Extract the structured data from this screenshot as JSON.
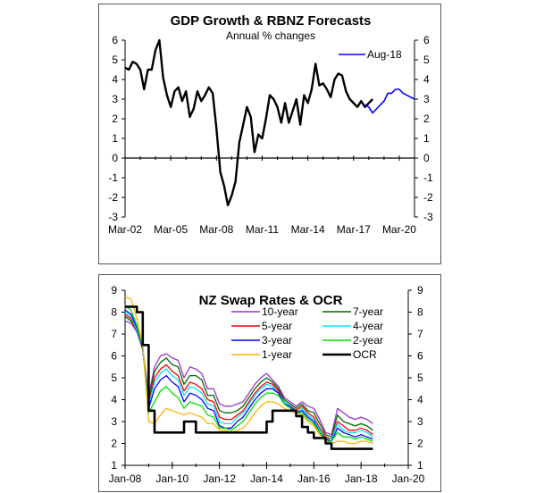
{
  "chart_data": [
    {
      "type": "line",
      "title": "GDP Growth & RBNZ Forecasts",
      "subtitle": "Annual % changes",
      "xlabel": "",
      "ylabel": "",
      "x_tick_labels": [
        "Mar-02",
        "Mar-05",
        "Mar-08",
        "Mar-11",
        "Mar-14",
        "Mar-17",
        "Mar-20"
      ],
      "x_range": [
        2002.0,
        2021.0
      ],
      "ylim": [
        -3,
        6
      ],
      "y_ticks": [
        -3,
        -2,
        -1,
        0,
        1,
        2,
        3,
        4,
        5,
        6
      ],
      "grid": false,
      "legend_position": "top-right",
      "series": [
        {
          "name": "GDP",
          "color": "#000000",
          "in_legend": false,
          "x": [
            2002.0,
            2002.25,
            2002.5,
            2002.75,
            2003.0,
            2003.25,
            2003.5,
            2003.75,
            2004.0,
            2004.25,
            2004.5,
            2004.75,
            2005.0,
            2005.25,
            2005.5,
            2005.75,
            2006.0,
            2006.25,
            2006.5,
            2006.75,
            2007.0,
            2007.25,
            2007.5,
            2007.75,
            2008.0,
            2008.25,
            2008.5,
            2008.75,
            2009.0,
            2009.25,
            2009.5,
            2009.75,
            2010.0,
            2010.25,
            2010.5,
            2010.75,
            2011.0,
            2011.25,
            2011.5,
            2011.75,
            2012.0,
            2012.25,
            2012.5,
            2012.75,
            2013.0,
            2013.25,
            2013.5,
            2013.75,
            2014.0,
            2014.25,
            2014.5,
            2014.75,
            2015.0,
            2015.25,
            2015.5,
            2015.75,
            2016.0,
            2016.25,
            2016.5,
            2016.75,
            2017.0,
            2017.25,
            2017.5,
            2017.75,
            2018.0,
            2018.25
          ],
          "values": [
            4.6,
            4.5,
            4.9,
            4.8,
            4.5,
            3.5,
            4.5,
            4.5,
            5.5,
            6.0,
            4.1,
            3.2,
            2.6,
            3.4,
            3.6,
            2.9,
            3.4,
            2.1,
            2.5,
            3.4,
            2.9,
            3.2,
            3.6,
            3.3,
            1.5,
            -0.7,
            -1.4,
            -2.4,
            -1.9,
            -1.2,
            0.8,
            1.7,
            2.6,
            2.1,
            0.3,
            1.2,
            1.0,
            2.0,
            3.2,
            3.0,
            2.6,
            1.8,
            2.8,
            1.8,
            2.4,
            3.0,
            1.7,
            3.2,
            2.8,
            3.5,
            4.8,
            3.7,
            3.8,
            3.5,
            3.1,
            4.0,
            4.3,
            4.2,
            3.4,
            3.0,
            2.8,
            2.6,
            2.9,
            2.6,
            2.8,
            3.0
          ],
          "note": "last two points overlap forecast start"
        },
        {
          "name": "Aug-18",
          "color": "#0000ff",
          "in_legend": true,
          "x": [
            2017.75,
            2018.0,
            2018.25,
            2018.5,
            2018.75,
            2019.0,
            2019.25,
            2019.5,
            2019.75,
            2020.0,
            2020.25,
            2020.5,
            2020.75,
            2021.0
          ],
          "values": [
            2.7,
            2.6,
            2.3,
            2.5,
            2.7,
            2.9,
            3.3,
            3.3,
            3.5,
            3.5,
            3.3,
            3.2,
            3.1,
            3.0
          ]
        }
      ]
    },
    {
      "type": "line",
      "title": "NZ Swap Rates & OCR",
      "xlabel": "",
      "ylabel": "",
      "x_tick_labels": [
        "Jan-08",
        "Jan-10",
        "Jan-12",
        "Jan-14",
        "Jan-16",
        "Jan-18",
        "Jan-20"
      ],
      "x_range": [
        2008.0,
        2020.0
      ],
      "ylim": [
        1,
        9
      ],
      "y_ticks": [
        1,
        2,
        3,
        4,
        5,
        6,
        7,
        8,
        9
      ],
      "grid": false,
      "legend_position": "top-right",
      "x": [
        2008.0,
        2008.25,
        2008.5,
        2008.75,
        2009.0,
        2009.25,
        2009.5,
        2009.75,
        2010.0,
        2010.25,
        2010.5,
        2010.75,
        2011.0,
        2011.25,
        2011.5,
        2011.75,
        2012.0,
        2012.25,
        2012.5,
        2012.75,
        2013.0,
        2013.25,
        2013.5,
        2013.75,
        2014.0,
        2014.25,
        2014.5,
        2014.75,
        2015.0,
        2015.25,
        2015.5,
        2015.75,
        2016.0,
        2016.25,
        2016.5,
        2016.75,
        2017.0,
        2017.25,
        2017.5,
        2017.75,
        2018.0,
        2018.25,
        2018.5
      ],
      "series": [
        {
          "name": "10-year",
          "color": "#9933cc",
          "values": [
            7.6,
            7.5,
            7.1,
            6.3,
            4.2,
            5.5,
            6.0,
            6.1,
            5.9,
            5.8,
            5.0,
            5.5,
            5.4,
            5.2,
            4.5,
            4.5,
            3.8,
            3.7,
            3.7,
            3.8,
            3.9,
            4.3,
            4.7,
            5.0,
            5.2,
            4.9,
            4.6,
            4.1,
            3.9,
            3.7,
            3.9,
            3.7,
            3.6,
            3.1,
            2.5,
            2.4,
            3.6,
            3.4,
            3.2,
            3.1,
            3.2,
            3.1,
            2.9
          ]
        },
        {
          "name": "7-year",
          "color": "#006600",
          "values": [
            7.8,
            7.6,
            7.2,
            6.3,
            4.0,
            5.3,
            5.7,
            5.9,
            5.6,
            5.5,
            4.7,
            5.1,
            5.1,
            4.9,
            4.2,
            4.2,
            3.5,
            3.4,
            3.4,
            3.5,
            3.7,
            4.1,
            4.5,
            4.8,
            5.0,
            4.8,
            4.5,
            4.0,
            3.8,
            3.6,
            3.8,
            3.5,
            3.4,
            2.9,
            2.4,
            2.3,
            3.3,
            3.0,
            2.9,
            2.8,
            2.9,
            2.8,
            2.6
          ]
        },
        {
          "name": "5-year",
          "color": "#ff0000",
          "values": [
            7.9,
            7.7,
            7.2,
            6.3,
            3.8,
            5.0,
            5.4,
            5.6,
            5.3,
            5.1,
            4.4,
            4.8,
            4.7,
            4.5,
            4.0,
            3.9,
            3.2,
            3.1,
            3.1,
            3.3,
            3.5,
            3.9,
            4.3,
            4.6,
            4.8,
            4.7,
            4.4,
            3.9,
            3.7,
            3.5,
            3.7,
            3.4,
            3.2,
            2.7,
            2.3,
            2.2,
            3.0,
            2.8,
            2.6,
            2.6,
            2.7,
            2.6,
            2.4
          ]
        },
        {
          "name": "4-year",
          "color": "#00e5ff",
          "values": [
            8.0,
            7.8,
            7.2,
            6.3,
            3.7,
            4.8,
            5.2,
            5.4,
            5.1,
            4.9,
            4.2,
            4.6,
            4.5,
            4.3,
            3.8,
            3.7,
            3.0,
            2.9,
            2.9,
            3.2,
            3.4,
            3.8,
            4.2,
            4.5,
            4.7,
            4.6,
            4.3,
            3.9,
            3.7,
            3.4,
            3.6,
            3.3,
            3.1,
            2.6,
            2.2,
            2.2,
            2.9,
            2.6,
            2.5,
            2.5,
            2.6,
            2.5,
            2.3
          ]
        },
        {
          "name": "3-year",
          "color": "#0000ff",
          "values": [
            8.1,
            7.9,
            7.3,
            6.3,
            3.6,
            4.5,
            4.9,
            5.1,
            4.8,
            4.6,
            3.9,
            4.3,
            4.2,
            4.0,
            3.6,
            3.5,
            2.8,
            2.7,
            2.7,
            3.0,
            3.2,
            3.6,
            4.0,
            4.3,
            4.5,
            4.5,
            4.3,
            3.8,
            3.7,
            3.4,
            3.5,
            3.2,
            3.0,
            2.5,
            2.2,
            2.1,
            2.7,
            2.5,
            2.4,
            2.3,
            2.4,
            2.3,
            2.2
          ]
        },
        {
          "name": "2-year",
          "color": "#00dd00",
          "values": [
            8.3,
            8.1,
            7.4,
            6.4,
            3.4,
            3.9,
            4.4,
            4.6,
            4.3,
            4.1,
            3.6,
            3.9,
            3.8,
            3.7,
            3.3,
            3.2,
            2.7,
            2.7,
            2.6,
            2.8,
            3.0,
            3.4,
            3.8,
            4.1,
            4.3,
            4.3,
            4.2,
            3.8,
            3.6,
            3.4,
            3.4,
            3.1,
            2.9,
            2.5,
            2.1,
            2.1,
            2.5,
            2.3,
            2.3,
            2.2,
            2.3,
            2.2,
            2.1
          ]
        },
        {
          "name": "1-year",
          "color": "#ffb300",
          "values": [
            8.7,
            8.6,
            7.7,
            6.5,
            3.0,
            2.9,
            3.3,
            3.6,
            3.5,
            3.4,
            3.3,
            3.4,
            3.3,
            3.2,
            2.9,
            2.9,
            2.6,
            2.6,
            2.5,
            2.6,
            2.7,
            3.0,
            3.4,
            3.7,
            3.9,
            3.9,
            3.8,
            3.6,
            3.5,
            3.4,
            3.3,
            3.0,
            2.8,
            2.4,
            2.1,
            2.0,
            2.1,
            2.1,
            2.0,
            2.0,
            2.1,
            2.1,
            2.0
          ]
        },
        {
          "name": "OCR",
          "color": "#000000",
          "values": [
            8.25,
            8.25,
            8.0,
            6.5,
            3.5,
            2.5,
            2.5,
            2.5,
            2.5,
            2.5,
            3.0,
            3.0,
            2.5,
            2.5,
            2.5,
            2.5,
            2.5,
            2.5,
            2.5,
            2.5,
            2.5,
            2.5,
            2.5,
            2.5,
            3.0,
            3.5,
            3.5,
            3.5,
            3.5,
            3.25,
            2.75,
            2.5,
            2.25,
            2.25,
            2.0,
            1.75,
            1.75,
            1.75,
            1.75,
            1.75,
            1.75,
            1.75,
            1.75
          ]
        }
      ]
    }
  ]
}
